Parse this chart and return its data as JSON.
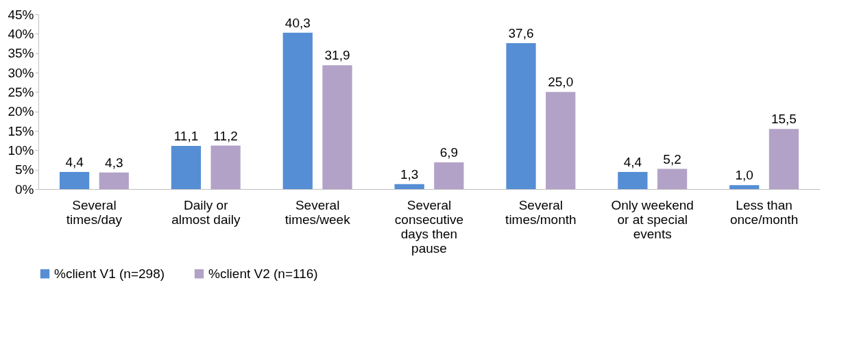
{
  "chart_data": {
    "type": "bar",
    "categories": [
      "Several times/day",
      "Daily or almost daily",
      "Several times/week",
      "Several consecutive days then pause",
      "Several times/month",
      "Only weekend or at special events",
      "Less than once/month"
    ],
    "series": [
      {
        "name": "%client V1 (n=298)",
        "color": "#558ed5",
        "values": [
          4.4,
          11.1,
          40.3,
          1.3,
          37.6,
          4.4,
          1.0
        ],
        "value_labels": [
          "4,4",
          "11,1",
          "40,3",
          "1,3",
          "37,6",
          "4,4",
          "1,0"
        ]
      },
      {
        "name": "%client V2 (n=116)",
        "color": "#b3a2c7",
        "values": [
          4.3,
          11.2,
          31.9,
          6.9,
          25.0,
          5.2,
          15.5
        ],
        "value_labels": [
          "4,3",
          "11,2",
          "31,9",
          "6,9",
          "25,0",
          "5,2",
          "15,5"
        ]
      }
    ],
    "ylim": [
      0,
      45
    ],
    "yticks": [
      {
        "value": 0,
        "label": "0%"
      },
      {
        "value": 5,
        "label": "5%"
      },
      {
        "value": 10,
        "label": "10%"
      },
      {
        "value": 15,
        "label": "15%"
      },
      {
        "value": 20,
        "label": "20%"
      },
      {
        "value": 25,
        "label": "25%"
      },
      {
        "value": 30,
        "label": "30%"
      },
      {
        "value": 35,
        "label": "35%"
      },
      {
        "value": 40,
        "label": "40%"
      },
      {
        "value": 45,
        "label": "45%"
      }
    ],
    "grid": false,
    "legend": "bottom"
  }
}
